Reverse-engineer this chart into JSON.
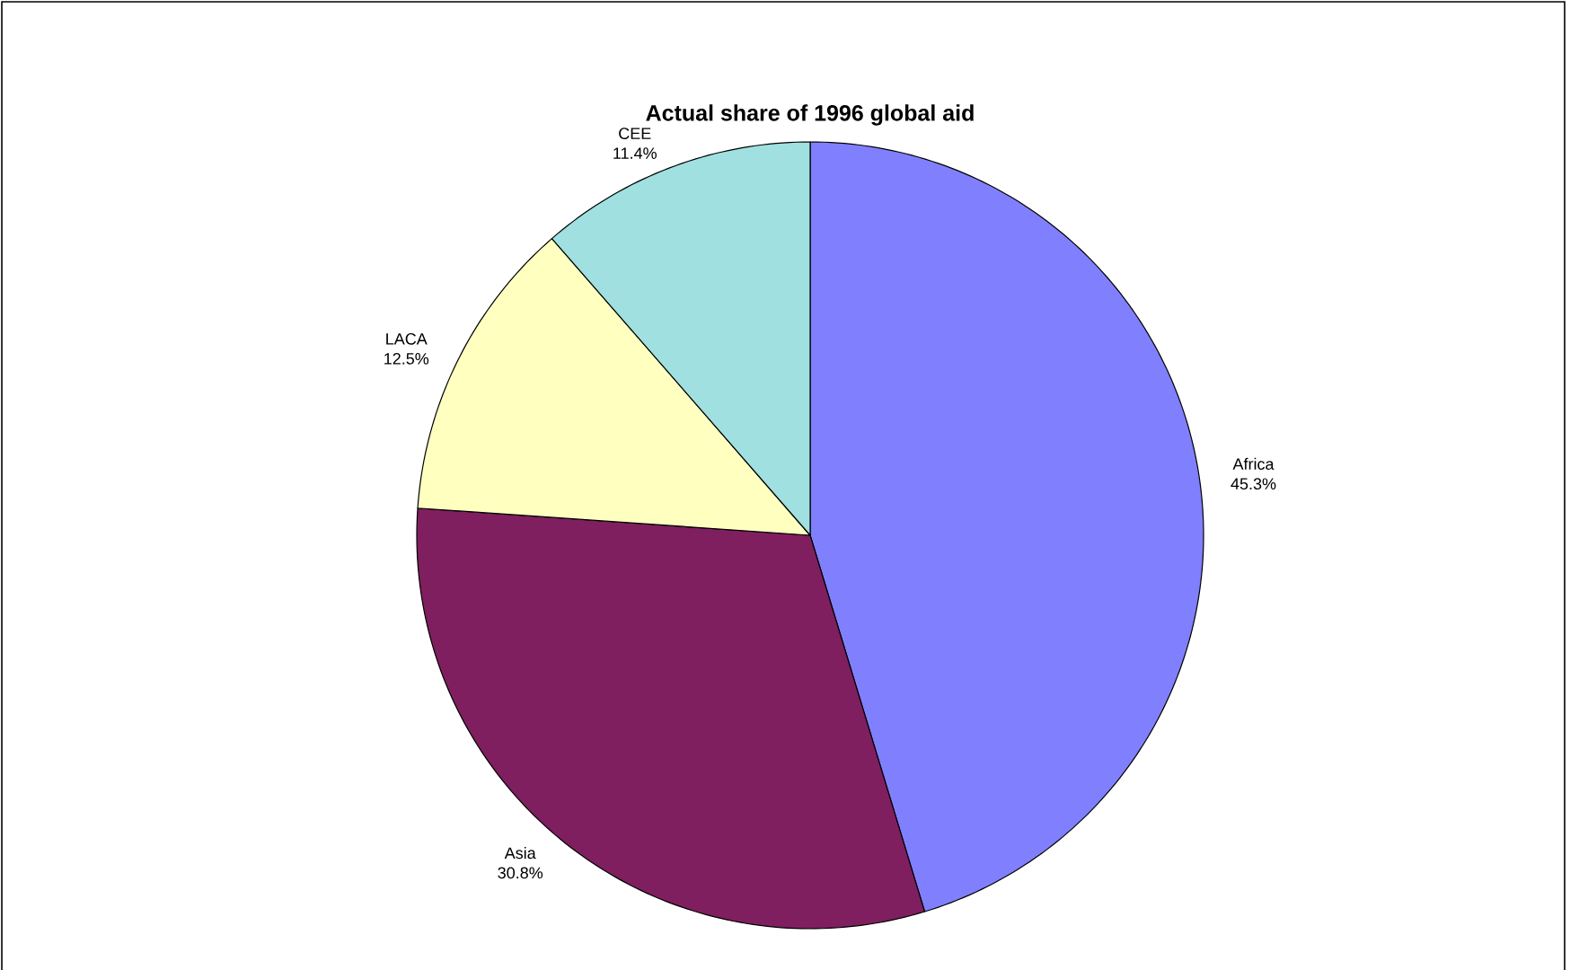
{
  "chart_data": {
    "type": "pie",
    "title": "Actual share of 1996 global aid",
    "categories": [
      "Africa",
      "Asia",
      "LACA",
      "CEE"
    ],
    "values": [
      45.3,
      30.8,
      12.5,
      11.4
    ],
    "colors": [
      "#8080ff",
      "#7f1f5f",
      "#ffffc0",
      "#a0e0e0"
    ],
    "value_labels": [
      "45.3%",
      "30.8%",
      "12.5%",
      "11.4%"
    ]
  }
}
